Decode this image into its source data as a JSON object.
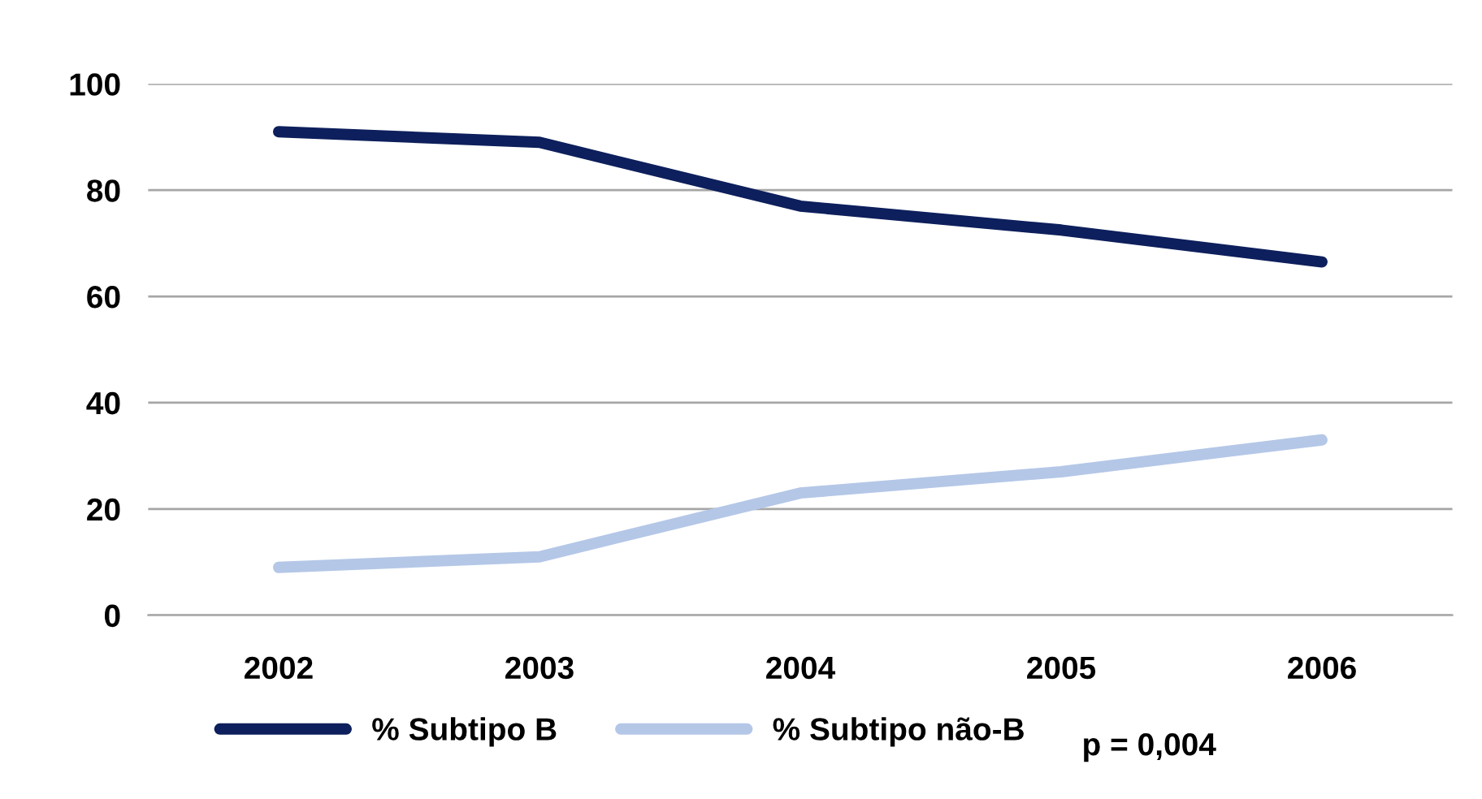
{
  "chart_data": {
    "type": "line",
    "categories": [
      "2002",
      "2003",
      "2004",
      "2005",
      "2006"
    ],
    "series": [
      {
        "name": "% Subtipo B",
        "color": "#0d1f5c",
        "values": [
          91,
          89,
          77,
          72.5,
          66.5
        ]
      },
      {
        "name": "% Subtipo não-B",
        "color": "#b4c7e7",
        "values": [
          9,
          11,
          23,
          27,
          33
        ]
      }
    ],
    "ylim": [
      0,
      100
    ],
    "yticks": [
      0,
      20,
      40,
      60,
      80,
      100
    ],
    "grid": "y",
    "legend": "bottom",
    "marker": "none",
    "line_style": "solid",
    "annotations": [
      "p = 0,004"
    ]
  }
}
